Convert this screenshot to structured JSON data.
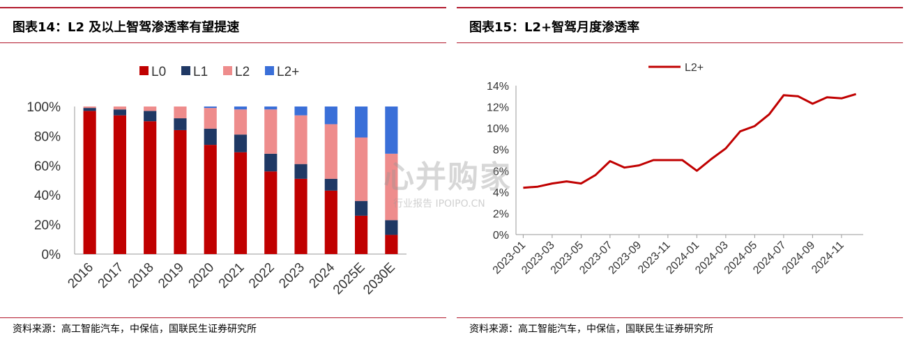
{
  "left": {
    "title": "图表14：L2 及以上智驾渗透率有望提速",
    "source": "资料来源：高工智能汽车，中保信，国联民生证券研究所"
  },
  "right": {
    "title": "图表15：L2+智驾月度渗透率",
    "source": "资料来源：高工智能汽车，中保信，国联民生证券研究所"
  },
  "watermark": {
    "main": "心并购家",
    "sub": "行业报告 IPOIPO.CN"
  },
  "colors": {
    "accent_rule": "#b2182b",
    "L0": "#c00000",
    "L1": "#1f3864",
    "L2": "#ee8c8c",
    "L2+": "#3a6fd8",
    "line": "#c00000"
  },
  "chart_data": [
    {
      "type": "bar",
      "stacked": true,
      "categories": [
        "2016",
        "2017",
        "2018",
        "2019",
        "2020",
        "2021",
        "2022",
        "2023",
        "2024",
        "2025E",
        "2030E"
      ],
      "series": [
        {
          "name": "L0",
          "values": [
            97,
            94,
            90,
            84,
            74,
            69,
            56,
            51,
            43,
            26,
            13
          ]
        },
        {
          "name": "L1",
          "values": [
            2,
            4,
            7,
            8,
            11,
            12,
            12,
            10,
            8,
            10,
            10
          ]
        },
        {
          "name": "L2",
          "values": [
            1,
            2,
            3,
            8,
            14,
            17,
            30,
            33,
            37,
            43,
            45
          ]
        },
        {
          "name": "L2+",
          "values": [
            0,
            0,
            0,
            0,
            1,
            2,
            2,
            6,
            12,
            21,
            32
          ]
        }
      ],
      "yticks": [
        "0%",
        "20%",
        "40%",
        "60%",
        "80%",
        "100%"
      ],
      "ylim": [
        0,
        100
      ],
      "legend": "top-center",
      "grid": false
    },
    {
      "type": "line",
      "series": [
        {
          "name": "L2+",
          "values": [
            4.4,
            4.5,
            4.8,
            5.0,
            4.8,
            5.6,
            6.9,
            6.3,
            6.5,
            7.0,
            7.0,
            7.0,
            6.0,
            7.1,
            8.1,
            9.7,
            10.2,
            11.3,
            13.1,
            13.0,
            12.3,
            12.9,
            12.8,
            13.2
          ]
        }
      ],
      "x": [
        "2023-01",
        "2023-02",
        "2023-03",
        "2023-04",
        "2023-05",
        "2023-06",
        "2023-07",
        "2023-08",
        "2023-09",
        "2023-10",
        "2023-11",
        "2023-12",
        "2024-01",
        "2024-02",
        "2024-03",
        "2024-04",
        "2024-05",
        "2024-06",
        "2024-07",
        "2024-08",
        "2024-09",
        "2024-10",
        "2024-11",
        "2024-12"
      ],
      "xticks": [
        "2023-01",
        "2023-03",
        "2023-05",
        "2023-07",
        "2023-09",
        "2023-11",
        "2024-01",
        "2024-03",
        "2024-05",
        "2024-07",
        "2024-09",
        "2024-11"
      ],
      "yticks": [
        "0%",
        "2%",
        "4%",
        "6%",
        "8%",
        "10%",
        "12%",
        "14%"
      ],
      "ylim": [
        0,
        14
      ],
      "legend": "top-center",
      "grid": false
    }
  ]
}
